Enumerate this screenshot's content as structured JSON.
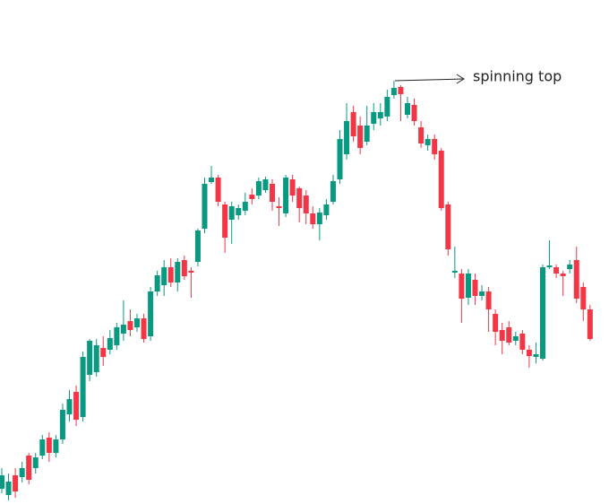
{
  "chart_data": {
    "type": "candlestick",
    "annotation": "spinning top",
    "up_color": "#089981",
    "down_color": "#f23645",
    "ylim": [
      0,
      562
    ],
    "open": [
      17,
      10,
      32,
      30,
      54,
      40,
      54,
      74,
      57,
      72,
      100,
      125,
      97,
      144,
      147,
      174,
      172,
      177,
      190,
      204,
      197,
      207,
      187,
      237,
      244,
      264,
      247,
      272,
      260,
      270,
      307,
      359,
      364,
      334,
      317,
      322,
      327,
      345,
      344,
      350,
      357,
      332,
      324,
      362,
      352,
      344,
      324,
      312,
      322,
      337,
      362,
      390,
      437,
      422,
      404,
      424,
      430,
      432,
      456,
      465,
      434,
      445,
      420,
      400,
      407,
      394,
      334,
      258,
      257,
      230,
      250,
      232,
      237,
      212,
      194,
      197,
      182,
      190,
      172,
      164,
      162,
      264,
      264,
      257,
      262,
      272,
      242,
      217
    ],
    "high": [
      40,
      34,
      40,
      47,
      57,
      57,
      77,
      80,
      77,
      112,
      127,
      132,
      170,
      184,
      184,
      187,
      194,
      202,
      227,
      217,
      212,
      212,
      242,
      260,
      272,
      274,
      274,
      277,
      264,
      307,
      364,
      377,
      367,
      337,
      337,
      334,
      347,
      352,
      364,
      365,
      362,
      342,
      367,
      367,
      354,
      350,
      332,
      330,
      340,
      367,
      417,
      447,
      444,
      432,
      444,
      447,
      447,
      462,
      472,
      467,
      454,
      452,
      427,
      412,
      412,
      397,
      337,
      287,
      262,
      262,
      257,
      244,
      242,
      217,
      202,
      204,
      192,
      194,
      177,
      180,
      267,
      294,
      267,
      260,
      272,
      287,
      247,
      222
    ],
    "low": [
      12,
      4,
      7,
      24,
      22,
      34,
      50,
      47,
      52,
      67,
      92,
      87,
      92,
      137,
      142,
      154,
      167,
      172,
      182,
      187,
      192,
      180,
      182,
      232,
      232,
      242,
      237,
      250,
      230,
      265,
      302,
      357,
      332,
      280,
      290,
      317,
      322,
      334,
      340,
      347,
      327,
      310,
      320,
      337,
      314,
      312,
      307,
      294,
      317,
      334,
      357,
      384,
      404,
      390,
      400,
      417,
      422,
      427,
      452,
      427,
      430,
      422,
      397,
      394,
      384,
      327,
      277,
      252,
      202,
      222,
      222,
      227,
      192,
      177,
      167,
      177,
      177,
      167,
      152,
      157,
      160,
      262,
      252,
      232,
      257,
      224,
      204,
      182
    ],
    "close": [
      32,
      25,
      14,
      40,
      27,
      52,
      72,
      57,
      72,
      105,
      117,
      94,
      164,
      182,
      177,
      164,
      185,
      197,
      200,
      194,
      207,
      184,
      237,
      255,
      264,
      247,
      270,
      254,
      258,
      305,
      357,
      364,
      337,
      297,
      332,
      330,
      337,
      340,
      360,
      362,
      337,
      330,
      364,
      344,
      330,
      324,
      312,
      325,
      334,
      360,
      407,
      427,
      410,
      397,
      422,
      437,
      437,
      454,
      464,
      457,
      447,
      427,
      402,
      407,
      390,
      330,
      284,
      260,
      229,
      257,
      232,
      237,
      217,
      192,
      182,
      180,
      187,
      172,
      165,
      167,
      264,
      266,
      257,
      254,
      267,
      229,
      217,
      184
    ]
  }
}
